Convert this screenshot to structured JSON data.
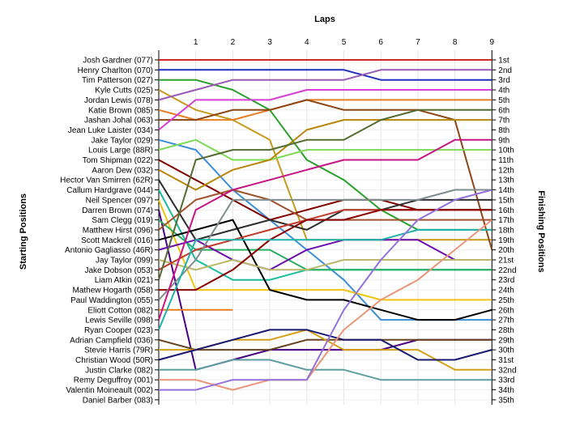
{
  "chart_data": {
    "type": "line",
    "title": "",
    "xlabel": "Laps",
    "ylabel_left": "Starting Positions",
    "ylabel_right": "Finishing Positions",
    "x": [
      0,
      1,
      2,
      3,
      4,
      5,
      6,
      7,
      8,
      9
    ],
    "x_tick_labels": [
      "1",
      "2",
      "3",
      "4",
      "5",
      "6",
      "7",
      "8",
      "9"
    ],
    "ylim": [
      1,
      35
    ],
    "y_inverted": true,
    "grid": true,
    "drivers": [
      "Josh Gardner (077)",
      "Henry Charlton (070)",
      "Tim Patterson (027)",
      "Kyle Cutts (025)",
      "Jordan Lewis (078)",
      "Katie Brown (085)",
      "Jashan Johal (063)",
      "Jean Luke Laister (034)",
      "Jake Taylor (029)",
      "Louis Large (88R)",
      "Tom Shipman (022)",
      "Aaron Dew (032)",
      "Hector Van Smirren (62R)",
      "Callum Hardgrave (044)",
      "Neil Spencer (097)",
      "Darren Brown (074)",
      "Sam Clegg (019)",
      "Matthew Hirst (096)",
      "Scott Mackrell (016)",
      "Antonio Gagliasso (46R)",
      "Jay Taylor (099)",
      "Jake Dobson (053)",
      "Liam Atkin (021)",
      "Mathew Hogarth (058)",
      "Paul Waddington (055)",
      "Eliott Cotton (082)",
      "Lewis Seville (098)",
      "Ryan Cooper (023)",
      "Adrian Campfield (036)",
      "Stevie Harris (79R)",
      "Christian Wood (50R)",
      "Justin Clarke (082)",
      "Remy Deguffroy (001)",
      "Valentin Moineault (002)",
      "Daniel Barber (083)"
    ],
    "finishing_labels": [
      "1st",
      "2nd",
      "3rd",
      "4th",
      "5th",
      "6th",
      "7th",
      "8th",
      "9th",
      "10th",
      "11th",
      "12th",
      "13th",
      "14th",
      "15th",
      "16th",
      "17th",
      "18th",
      "19th",
      "20th",
      "21st",
      "22nd",
      "23rd",
      "24th",
      "25th",
      "26th",
      "27th",
      "28th",
      "29th",
      "30th",
      "31st",
      "32nd",
      "33rd",
      "34th",
      "35th"
    ],
    "series": [
      {
        "name": "Josh Gardner (077)",
        "color": "#d62728",
        "positions": [
          1,
          1,
          1,
          1,
          1,
          1,
          1,
          1,
          1,
          1
        ]
      },
      {
        "name": "Henry Charlton (070)",
        "color": "#1f2fbf",
        "positions": [
          2,
          2,
          2,
          2,
          2,
          2,
          3,
          3,
          3,
          3
        ]
      },
      {
        "name": "Tim Patterson (027)",
        "color": "#2ca02c",
        "positions": [
          3,
          3,
          4,
          6,
          11,
          13,
          16,
          18,
          18,
          18
        ]
      },
      {
        "name": "Kyle Cutts (025)",
        "color": "#c79a1d",
        "positions": [
          4,
          6,
          7,
          9,
          19,
          19,
          19,
          19,
          19,
          19
        ]
      },
      {
        "name": "Jordan Lewis (078)",
        "color": "#9b59b6",
        "positions": [
          5,
          4,
          3,
          3,
          3,
          3,
          2,
          2,
          2,
          2
        ]
      },
      {
        "name": "Katie Brown (085)",
        "color": "#e67e22",
        "positions": [
          6,
          7,
          7,
          6,
          5,
          5,
          5,
          5,
          5,
          5
        ]
      },
      {
        "name": "Jashan Johal (063)",
        "color": "#8b4513",
        "positions": [
          7,
          7,
          6,
          6,
          5,
          6,
          6,
          6,
          7,
          20
        ]
      },
      {
        "name": "Jean Luke Laister (034)",
        "color": "#d63fd6",
        "positions": [
          8,
          5,
          5,
          5,
          4,
          4,
          4,
          4,
          4,
          4
        ]
      },
      {
        "name": "Jake Taylor (029)",
        "color": "#3a8fd6",
        "positions": [
          9,
          10,
          14,
          17,
          20,
          23,
          27,
          27,
          27,
          27
        ]
      },
      {
        "name": "Louis Large (88R)",
        "color": "#7ed957",
        "positions": [
          10,
          9,
          11,
          11,
          10,
          10,
          10,
          10,
          10,
          10
        ]
      },
      {
        "name": "Tom Shipman (022)",
        "color": "#800000",
        "positions": [
          11,
          13,
          15,
          17,
          16,
          15,
          15,
          16,
          16,
          16
        ]
      },
      {
        "name": "Aaron Dew (032)",
        "color": "#b8860b",
        "positions": [
          12,
          14,
          12,
          11,
          8,
          7,
          7,
          7,
          7,
          7
        ]
      },
      {
        "name": "Hector Van Smirren (62R)",
        "color": "#2e2e2e",
        "positions": [
          13,
          19,
          18,
          17,
          18,
          16,
          16,
          15,
          15,
          15
        ]
      },
      {
        "name": "Callum Hardgrave (044)",
        "color": "#1abc9c",
        "positions": [
          14,
          21,
          23,
          23,
          22,
          22,
          22,
          22,
          22,
          22
        ]
      },
      {
        "name": "Neil Spencer (097)",
        "color": "#f1c40f",
        "positions": [
          15,
          24,
          24,
          24,
          24,
          24,
          25,
          25,
          25,
          25
        ]
      },
      {
        "name": "Darren Brown (074)",
        "color": "#4b0082",
        "positions": [
          16,
          32,
          31,
          30,
          30,
          30,
          30,
          29,
          29,
          29
        ]
      },
      {
        "name": "Sam Clegg (019)",
        "color": "#27ae60",
        "positions": [
          17,
          20,
          20,
          20,
          22,
          22,
          22,
          22,
          22,
          22
        ]
      },
      {
        "name": "Matthew Hirst (096)",
        "color": "#a0522d",
        "positions": [
          18,
          15,
          14,
          15,
          17,
          17,
          17,
          17,
          17,
          17
        ]
      },
      {
        "name": "Scott Mackrell (016)",
        "color": "#000000",
        "positions": [
          19,
          18,
          17,
          24,
          25,
          25,
          26,
          27,
          27,
          26
        ]
      },
      {
        "name": "Antonio Gagliasso (46R)",
        "color": "#6a0dad",
        "positions": [
          20,
          19,
          21,
          22,
          20,
          19,
          19,
          19,
          21,
          21
        ]
      },
      {
        "name": "Jay Taylor (099)",
        "color": "#bdb76b",
        "positions": [
          21,
          22,
          21,
          22,
          22,
          21,
          21,
          21,
          21,
          21
        ]
      },
      {
        "name": "Jake Dobson (053)",
        "color": "#c0392b",
        "positions": [
          22,
          20,
          19,
          18,
          17,
          16,
          16,
          16,
          16,
          16
        ]
      },
      {
        "name": "Liam Atkin (021)",
        "color": "#556b2f",
        "positions": [
          23,
          11,
          10,
          10,
          9,
          9,
          7,
          6,
          6,
          6
        ]
      },
      {
        "name": "Mathew Hogarth (058)",
        "color": "#8b0000",
        "positions": [
          24,
          24,
          22,
          19,
          17,
          17,
          16,
          16,
          16,
          16
        ]
      },
      {
        "name": "Paul Waddington (055)",
        "color": "#7f8c8d",
        "positions": [
          25,
          21,
          15,
          15,
          15,
          15,
          15,
          15,
          14,
          14
        ]
      },
      {
        "name": "Eliott Cotton (082)",
        "color": "#e67e22",
        "positions": [
          26,
          26,
          26,
          null,
          null,
          null,
          null,
          null,
          null,
          null
        ]
      },
      {
        "name": "Lewis Seville (098)",
        "color": "#c71585",
        "positions": [
          27,
          16,
          14,
          13,
          12,
          11,
          11,
          11,
          9,
          9
        ]
      },
      {
        "name": "Ryan Cooper (023)",
        "color": "#20b2aa",
        "positions": [
          28,
          19,
          19,
          19,
          19,
          19,
          19,
          18,
          18,
          18
        ]
      },
      {
        "name": "Adrian Campfield (036)",
        "color": "#654321",
        "positions": [
          29,
          30,
          30,
          30,
          29,
          29,
          29,
          29,
          29,
          29
        ]
      },
      {
        "name": "Stevie Harris (79R)",
        "color": "#d4a017",
        "positions": [
          30,
          30,
          29,
          29,
          28,
          30,
          30,
          30,
          32,
          32
        ]
      },
      {
        "name": "Christian Wood (50R)",
        "color": "#191970",
        "positions": [
          31,
          30,
          29,
          28,
          28,
          29,
          29,
          31,
          31,
          30
        ]
      },
      {
        "name": "Justin Clarke (082)",
        "color": "#5f9ea0",
        "positions": [
          32,
          32,
          31,
          31,
          32,
          32,
          33,
          33,
          33,
          33
        ]
      },
      {
        "name": "Remy Deguffroy (001)",
        "color": "#e9967a",
        "positions": [
          33,
          33,
          34,
          33,
          33,
          28,
          25,
          23,
          20,
          17
        ]
      },
      {
        "name": "Valentin Moineault (002)",
        "color": "#9370db",
        "positions": [
          34,
          34,
          33,
          33,
          33,
          26,
          21,
          17,
          15,
          14
        ]
      },
      {
        "name": "Daniel Barber (083)",
        "color": "#888888",
        "positions": []
      }
    ]
  }
}
